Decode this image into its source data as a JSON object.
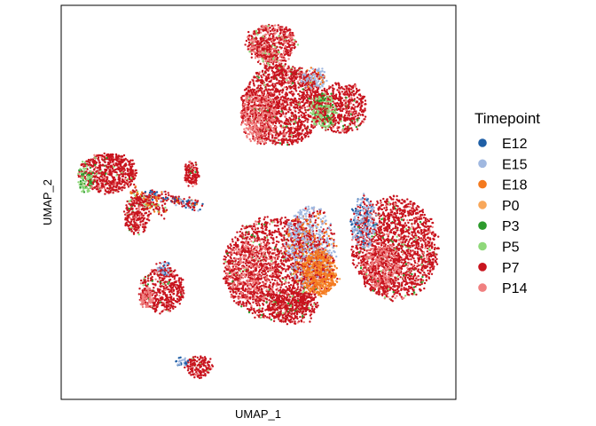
{
  "chart_data": {
    "type": "scatter",
    "xlabel": "UMAP_1",
    "ylabel": "UMAP_2",
    "ticks_visible": false,
    "grid": false,
    "legend_position": "right",
    "point_size": "small",
    "legend": {
      "title": "Timepoint",
      "entries": [
        {
          "label": "E12",
          "color": "#1f5fa6"
        },
        {
          "label": "E15",
          "color": "#a0b8e0"
        },
        {
          "label": "E18",
          "color": "#f47a1f"
        },
        {
          "label": "P0",
          "color": "#f8a75a"
        },
        {
          "label": "P3",
          "color": "#2c9a2c"
        },
        {
          "label": "P5",
          "color": "#8fd87a"
        },
        {
          "label": "P7",
          "color": "#c8141e"
        },
        {
          "label": "P14",
          "color": "#f08080"
        }
      ]
    }
  }
}
